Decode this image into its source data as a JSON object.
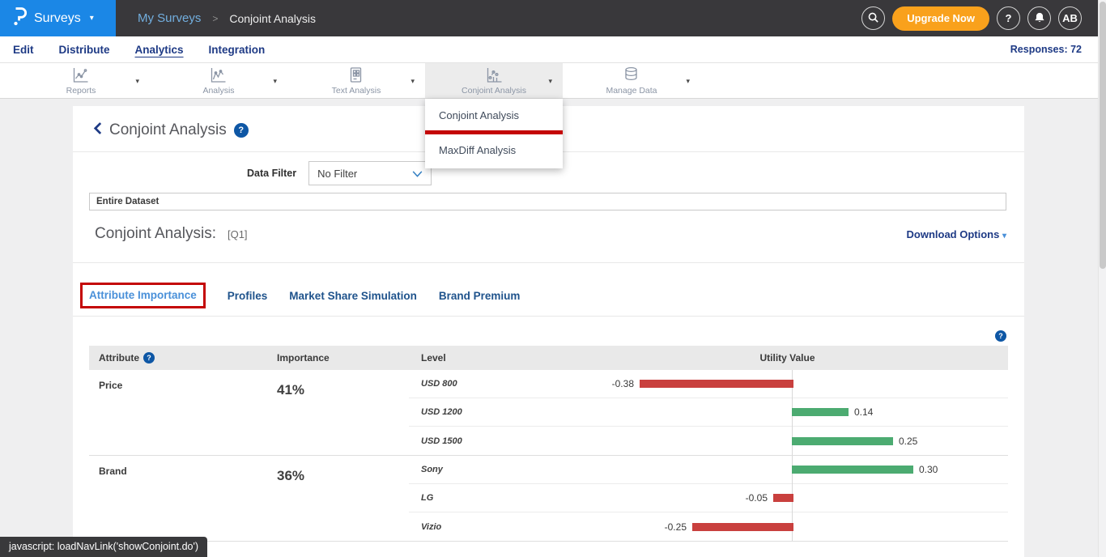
{
  "ui": {
    "caret": "▾",
    "help_glyph": "?"
  },
  "header": {
    "brand_label": "Surveys",
    "breadcrumb": {
      "parent": "My Surveys",
      "separator": ">",
      "current": "Conjoint Analysis"
    },
    "upgrade_label": "Upgrade Now",
    "avatar_initials": "AB",
    "icons": [
      "search-icon",
      "help-icon",
      "notifications-bell-icon",
      "avatar"
    ]
  },
  "subnav": {
    "items": [
      {
        "label": "Edit",
        "active": false
      },
      {
        "label": "Distribute",
        "active": false
      },
      {
        "label": "Analytics",
        "active": true
      },
      {
        "label": "Integration",
        "active": false
      }
    ],
    "responses_label": "Responses: 72"
  },
  "toolbar": {
    "items": [
      {
        "label": "Reports",
        "icon": "line-chart-icon",
        "active": false
      },
      {
        "label": "Analysis",
        "icon": "line-chart-icon",
        "active": false
      },
      {
        "label": "Text Analysis",
        "icon": "document-grid-icon",
        "active": false
      },
      {
        "label": "Conjoint Analysis",
        "icon": "scatter-chart-icon",
        "active": true
      },
      {
        "label": "Manage Data",
        "icon": "database-icon",
        "active": false
      }
    ]
  },
  "dropdown": {
    "items": [
      {
        "label": "Conjoint Analysis",
        "annotated": true
      },
      {
        "label": "MaxDiff Analysis",
        "annotated": false
      }
    ]
  },
  "page": {
    "title": "Conjoint Analysis",
    "data_filter_label": "Data Filter",
    "filter_value": "No Filter",
    "dataset_value": "Entire Dataset",
    "section_title": "Conjoint Analysis:",
    "question_ref": "[Q1]",
    "download_label": "Download Options",
    "tabs": [
      {
        "label": "Attribute Importance",
        "active": true,
        "annotated": true
      },
      {
        "label": "Profiles",
        "active": false
      },
      {
        "label": "Market Share Simulation",
        "active": false
      },
      {
        "label": "Brand Premium",
        "active": false
      }
    ]
  },
  "table": {
    "headers": {
      "attribute": "Attribute",
      "importance": "Importance",
      "level": "Level",
      "utility": "Utility Value"
    },
    "rows": [
      {
        "attribute": "Price",
        "importance": "41%",
        "levels": [
          {
            "name": "USD 800",
            "value": -0.38,
            "display": "-0.38"
          },
          {
            "name": "USD 1200",
            "value": 0.14,
            "display": "0.14"
          },
          {
            "name": "USD 1500",
            "value": 0.25,
            "display": "0.25"
          }
        ]
      },
      {
        "attribute": "Brand",
        "importance": "36%",
        "levels": [
          {
            "name": "Sony",
            "value": 0.3,
            "display": "0.30"
          },
          {
            "name": "LG",
            "value": -0.05,
            "display": "-0.05"
          },
          {
            "name": "Vizio",
            "value": -0.25,
            "display": "-0.25"
          }
        ]
      }
    ]
  },
  "statusbar": {
    "text": "javascript: loadNavLink('showConjoint.do')"
  },
  "colors": {
    "brand_blue": "#1b87e6",
    "topbar": "#39383b",
    "orange": "#f9a11c",
    "navy_link": "#1e3a85",
    "tab_active": "#4a90d9",
    "tab_inactive": "#1f538c",
    "bar_negative": "#c9403e",
    "bar_positive": "#4cab71",
    "annotation_red": "#c40606",
    "table_header_bg": "#e9e9e9"
  }
}
